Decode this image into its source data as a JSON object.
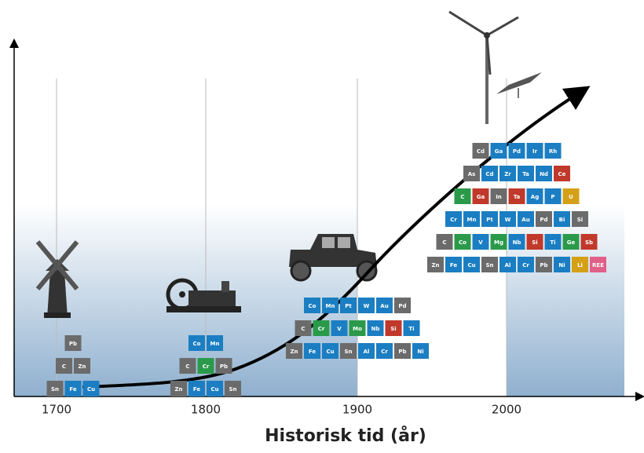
{
  "axis": {
    "label": "Historisk tid (år)",
    "ticks": [
      "1700",
      "1800",
      "1900",
      "2000"
    ]
  },
  "eras": [
    {
      "rows": [
        [
          {
            "s": "Sn",
            "c": "#6b6b6b"
          },
          {
            "s": "Fe",
            "c": "#1b7ec2"
          },
          {
            "s": "Cu",
            "c": "#1b7ec2"
          }
        ],
        [
          {
            "s": "C",
            "c": "#6b6b6b"
          },
          {
            "s": "Zn",
            "c": "#6b6b6b"
          }
        ],
        [
          {
            "s": "Pb",
            "c": "#6b6b6b"
          }
        ]
      ]
    },
    {
      "rows": [
        [
          {
            "s": "Zn",
            "c": "#6b6b6b"
          },
          {
            "s": "Fe",
            "c": "#1b7ec2"
          },
          {
            "s": "Cu",
            "c": "#1b7ec2"
          },
          {
            "s": "Sn",
            "c": "#6b6b6b"
          }
        ],
        [
          {
            "s": "C",
            "c": "#6b6b6b"
          },
          {
            "s": "Cr",
            "c": "#2a9a4a"
          },
          {
            "s": "Pb",
            "c": "#6b6b6b"
          }
        ],
        [
          {
            "s": "Co",
            "c": "#1b7ec2"
          },
          {
            "s": "Mn",
            "c": "#1b7ec2"
          }
        ]
      ]
    },
    {
      "rows": [
        [
          {
            "s": "Zn",
            "c": "#6b6b6b"
          },
          {
            "s": "Fe",
            "c": "#1b7ec2"
          },
          {
            "s": "Cu",
            "c": "#1b7ec2"
          },
          {
            "s": "Sn",
            "c": "#6b6b6b"
          },
          {
            "s": "Al",
            "c": "#1b7ec2"
          },
          {
            "s": "Cr",
            "c": "#1b7ec2"
          },
          {
            "s": "Pb",
            "c": "#6b6b6b"
          },
          {
            "s": "Ni",
            "c": "#1b7ec2"
          }
        ],
        [
          {
            "s": "C",
            "c": "#6b6b6b"
          },
          {
            "s": "Cr",
            "c": "#2a9a4a"
          },
          {
            "s": "V",
            "c": "#1b7ec2"
          },
          {
            "s": "Mo",
            "c": "#2a9a4a"
          },
          {
            "s": "Nb",
            "c": "#1b7ec2"
          },
          {
            "s": "Si",
            "c": "#c0392b"
          },
          {
            "s": "Ti",
            "c": "#1b7ec2"
          }
        ],
        [
          {
            "s": "Co",
            "c": "#1b7ec2"
          },
          {
            "s": "Mn",
            "c": "#1b7ec2"
          },
          {
            "s": "Pt",
            "c": "#1b7ec2"
          },
          {
            "s": "W",
            "c": "#1b7ec2"
          },
          {
            "s": "Au",
            "c": "#1b7ec2"
          },
          {
            "s": "Pd",
            "c": "#6b6b6b"
          }
        ]
      ]
    },
    {
      "rows": [
        [
          {
            "s": "Zn",
            "c": "#6b6b6b"
          },
          {
            "s": "Fe",
            "c": "#1b7ec2"
          },
          {
            "s": "Cu",
            "c": "#1b7ec2"
          },
          {
            "s": "Sn",
            "c": "#6b6b6b"
          },
          {
            "s": "Al",
            "c": "#1b7ec2"
          },
          {
            "s": "Cr",
            "c": "#1b7ec2"
          },
          {
            "s": "Pb",
            "c": "#6b6b6b"
          },
          {
            "s": "Ni",
            "c": "#1b7ec2"
          },
          {
            "s": "Li",
            "c": "#d4a017"
          },
          {
            "s": "REE",
            "c": "#e06088"
          }
        ],
        [
          {
            "s": "C",
            "c": "#6b6b6b"
          },
          {
            "s": "Co",
            "c": "#2a9a4a"
          },
          {
            "s": "V",
            "c": "#1b7ec2"
          },
          {
            "s": "Mg",
            "c": "#2a9a4a"
          },
          {
            "s": "Nb",
            "c": "#1b7ec2"
          },
          {
            "s": "Si",
            "c": "#c0392b"
          },
          {
            "s": "Ti",
            "c": "#1b7ec2"
          },
          {
            "s": "Ge",
            "c": "#2a9a4a"
          },
          {
            "s": "Sb",
            "c": "#c0392b"
          }
        ],
        [
          {
            "s": "Cr",
            "c": "#1b7ec2"
          },
          {
            "s": "Mn",
            "c": "#1b7ec2"
          },
          {
            "s": "Pt",
            "c": "#1b7ec2"
          },
          {
            "s": "W",
            "c": "#1b7ec2"
          },
          {
            "s": "Au",
            "c": "#1b7ec2"
          },
          {
            "s": "Pd",
            "c": "#6b6b6b"
          },
          {
            "s": "Bi",
            "c": "#1b7ec2"
          },
          {
            "s": "Si",
            "c": "#6b6b6b"
          }
        ],
        [
          {
            "s": "C",
            "c": "#2a9a4a"
          },
          {
            "s": "Ga",
            "c": "#c0392b"
          },
          {
            "s": "In",
            "c": "#6b6b6b"
          },
          {
            "s": "Ta",
            "c": "#c0392b"
          },
          {
            "s": "Ag",
            "c": "#1b7ec2"
          },
          {
            "s": "P",
            "c": "#1b7ec2"
          },
          {
            "s": "U",
            "c": "#d4a017"
          }
        ],
        [
          {
            "s": "As",
            "c": "#6b6b6b"
          },
          {
            "s": "Cd",
            "c": "#1b7ec2"
          },
          {
            "s": "Zr",
            "c": "#1b7ec2"
          },
          {
            "s": "Ta",
            "c": "#1b7ec2"
          },
          {
            "s": "Nd",
            "c": "#1b7ec2"
          },
          {
            "s": "Ce",
            "c": "#c0392b"
          }
        ],
        [
          {
            "s": "Cd",
            "c": "#6b6b6b"
          },
          {
            "s": "Ga",
            "c": "#1b7ec2"
          },
          {
            "s": "Pd",
            "c": "#1b7ec2"
          },
          {
            "s": "Ir",
            "c": "#1b7ec2"
          },
          {
            "s": "Rh",
            "c": "#1b7ec2"
          }
        ]
      ]
    }
  ]
}
